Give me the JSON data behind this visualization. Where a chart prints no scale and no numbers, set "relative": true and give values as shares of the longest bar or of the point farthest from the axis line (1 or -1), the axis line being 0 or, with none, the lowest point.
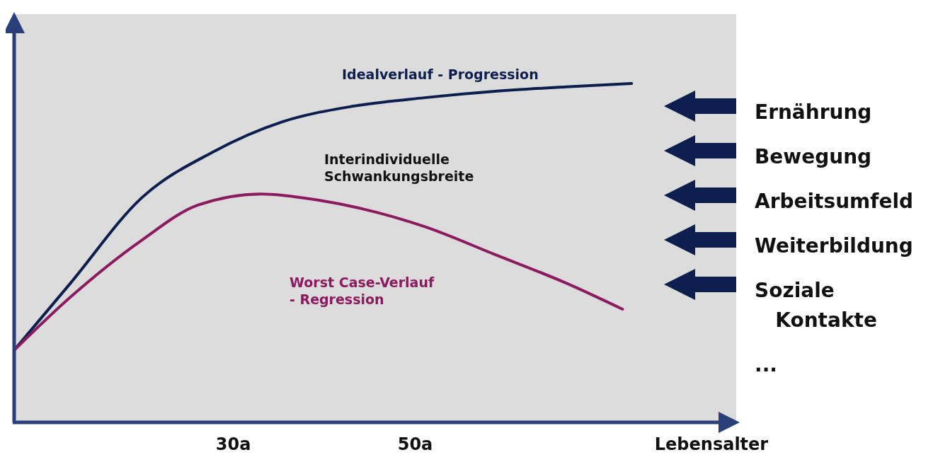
{
  "chart_data": {
    "type": "line",
    "relative": true,
    "xlabel": "Lebensalter",
    "xlim": [
      5.9,
      85.3
    ],
    "xticks": [
      {
        "value": 30,
        "label": "30a"
      },
      {
        "value": 50,
        "label": "50a"
      }
    ],
    "series": [
      {
        "name": "Idealverlauf - Progression",
        "color": "#0b1e4e",
        "x": [
          5.9,
          12.1,
          19.9,
          27.7,
          35.4,
          43.2,
          51.0,
          58.8,
          66.6,
          73.8
        ],
        "values": [
          0.213,
          0.411,
          0.662,
          0.797,
          0.887,
          0.933,
          0.958,
          0.977,
          0.99,
          1.0
        ]
      },
      {
        "name": "Worst Case-Verlauf\n- Regression",
        "color": "#8b1a5e",
        "x": [
          5.9,
          12.1,
          19.9,
          26.1,
          33.1,
          39.3,
          51.0,
          58.8,
          66.6,
          72.8
        ],
        "values": [
          0.213,
          0.37,
          0.537,
          0.641,
          0.674,
          0.656,
          0.578,
          0.495,
          0.411,
          0.334
        ]
      }
    ],
    "annotations": [
      "Interindividuelle\nSchwankungsbreite",
      "Ernährung",
      "Bewegung",
      "Arbeitsumfeld",
      "Weiterbildung",
      "Soziale\n   Kontakte",
      "..."
    ],
    "line_style": "solid"
  }
}
